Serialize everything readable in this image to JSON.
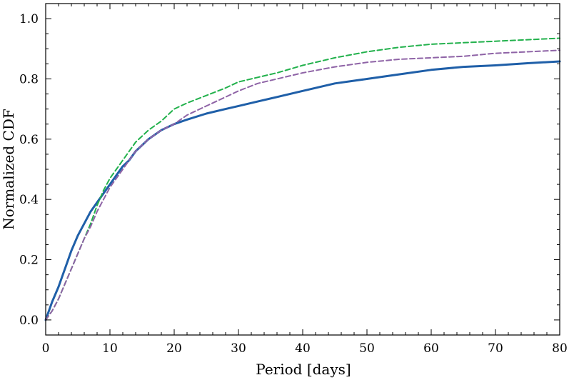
{
  "chart_data": {
    "type": "line",
    "xlabel": "Period [days]",
    "ylabel": "Normalized CDF",
    "xlim": [
      0,
      80
    ],
    "ylim": [
      -0.05,
      1.05
    ],
    "xticks": [
      0,
      10,
      20,
      30,
      40,
      50,
      60,
      70,
      80
    ],
    "xtick_labels": [
      "0",
      "10",
      "20",
      "30",
      "40",
      "50",
      "60",
      "70",
      "80"
    ],
    "yticks": [
      0.0,
      0.2,
      0.4,
      0.6,
      0.8,
      1.0
    ],
    "ytick_labels": [
      "0.0",
      "0.2",
      "0.4",
      "0.6",
      "0.8",
      "1.0"
    ],
    "grid": false,
    "legend": "none",
    "series": [
      {
        "color": "#1f5fa8",
        "style": "solid",
        "x": [
          0,
          1,
          2,
          3,
          4,
          5,
          6,
          7,
          8,
          9,
          10,
          11,
          12,
          13,
          14,
          15,
          16,
          18,
          20,
          22,
          25,
          28,
          30,
          33,
          36,
          40,
          45,
          50,
          55,
          60,
          65,
          70,
          75,
          80
        ],
        "y": [
          0.0,
          0.06,
          0.11,
          0.17,
          0.23,
          0.28,
          0.32,
          0.36,
          0.39,
          0.42,
          0.45,
          0.48,
          0.51,
          0.53,
          0.56,
          0.58,
          0.6,
          0.63,
          0.65,
          0.665,
          0.685,
          0.7,
          0.71,
          0.725,
          0.74,
          0.76,
          0.785,
          0.8,
          0.815,
          0.83,
          0.84,
          0.845,
          0.852,
          0.858
        ]
      },
      {
        "color": "#22b14c",
        "style": "dashed",
        "x": [
          0,
          1,
          2,
          3,
          4,
          5,
          6,
          7,
          8,
          9,
          10,
          11,
          12,
          13,
          14,
          15,
          16,
          18,
          20,
          22,
          25,
          28,
          30,
          33,
          36,
          40,
          45,
          50,
          55,
          60,
          65,
          70,
          75,
          80
        ],
        "y": [
          0.0,
          0.03,
          0.07,
          0.12,
          0.17,
          0.22,
          0.27,
          0.32,
          0.38,
          0.43,
          0.47,
          0.5,
          0.53,
          0.56,
          0.59,
          0.61,
          0.63,
          0.66,
          0.7,
          0.72,
          0.745,
          0.77,
          0.79,
          0.805,
          0.82,
          0.845,
          0.87,
          0.89,
          0.905,
          0.915,
          0.92,
          0.925,
          0.93,
          0.935
        ]
      },
      {
        "color": "#8e63a6",
        "style": "dashed",
        "x": [
          0,
          1,
          2,
          3,
          4,
          5,
          6,
          7,
          8,
          9,
          10,
          11,
          12,
          13,
          14,
          15,
          16,
          18,
          20,
          22,
          25,
          28,
          30,
          33,
          36,
          40,
          45,
          50,
          55,
          60,
          65,
          70,
          75,
          80
        ],
        "y": [
          0.0,
          0.03,
          0.07,
          0.12,
          0.17,
          0.22,
          0.27,
          0.31,
          0.36,
          0.4,
          0.44,
          0.47,
          0.5,
          0.53,
          0.56,
          0.58,
          0.6,
          0.63,
          0.65,
          0.68,
          0.71,
          0.74,
          0.76,
          0.785,
          0.8,
          0.82,
          0.84,
          0.855,
          0.865,
          0.87,
          0.875,
          0.885,
          0.89,
          0.895
        ]
      }
    ]
  }
}
